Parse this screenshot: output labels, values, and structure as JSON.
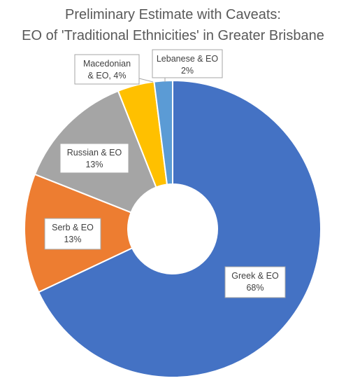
{
  "chart_data": {
    "type": "pie",
    "variant": "donut",
    "title_lines": [
      "Preliminary Estimate with Caveats:",
      "EO of 'Traditional Ethnicities' in Greater Brisbane"
    ],
    "slices": [
      {
        "label": "Greek & EO",
        "value": 68,
        "value_label": "68%",
        "color": "#4472C4"
      },
      {
        "label": "Serb & EO",
        "value": 13,
        "value_label": "13%",
        "color": "#ED7D31"
      },
      {
        "label": "Russian & EO",
        "value": 13,
        "value_label": "13%",
        "color": "#A5A5A5"
      },
      {
        "label": "Macedonian & EO",
        "value": 4,
        "value_label": "4%",
        "color": "#FFC000"
      },
      {
        "label": "Lebanese & EO",
        "value": 2,
        "value_label": "2%",
        "color": "#5B9BD5"
      }
    ],
    "legend": "none",
    "start_angle": "12 o'clock",
    "direction": "clockwise"
  }
}
